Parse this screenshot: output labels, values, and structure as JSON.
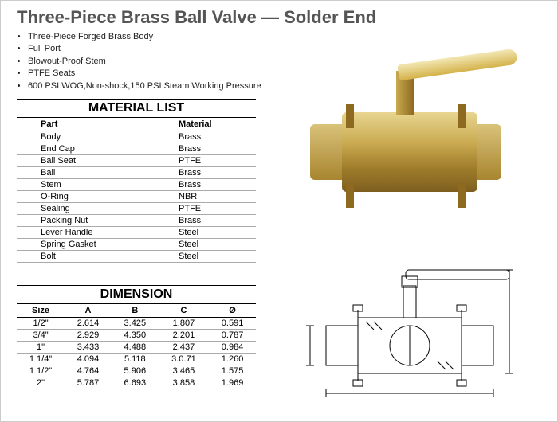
{
  "title": "Three-Piece Brass Ball Valve — Solder End",
  "features": [
    "Three-Piece Forged Brass Body",
    "Full Port",
    "Blowout-Proof Stem",
    "PTFE Seats",
    "600 PSI WOG,Non-shock,150 PSI Steam Working Pressure"
  ],
  "material_list": {
    "title": "MATERIAL LIST",
    "headers": [
      "Part",
      "Material"
    ],
    "rows": [
      [
        "Body",
        "Brass"
      ],
      [
        "End   Cap",
        "Brass"
      ],
      [
        "Ball   Seat",
        "PTFE"
      ],
      [
        "Ball",
        "Brass"
      ],
      [
        "Stem",
        "Brass"
      ],
      [
        "O-Ring",
        "NBR"
      ],
      [
        "Sealing",
        "PTFE"
      ],
      [
        "Packing  Nut",
        "Brass"
      ],
      [
        "Lever  Handle",
        "Steel"
      ],
      [
        "Spring  Gasket",
        "Steel"
      ],
      [
        "Bolt",
        "Steel"
      ]
    ]
  },
  "dimension": {
    "title": "DIMENSION",
    "headers": [
      "Size",
      "A",
      "B",
      "C",
      "Ø"
    ],
    "rows": [
      [
        "1/2\"",
        "2.614",
        "3.425",
        "1.807",
        "0.591"
      ],
      [
        "3/4\"",
        "2.929",
        "4.350",
        "2.201",
        "0.787"
      ],
      [
        "1\"",
        "3.433",
        "4.488",
        "2.437",
        "0.984"
      ],
      [
        "1  1/4\"",
        "4.094",
        "5.118",
        "3.0.71",
        "1.260"
      ],
      [
        "1  1/2\"",
        "4.764",
        "5.906",
        "3.465",
        "1.575"
      ],
      [
        "2\"",
        "5.787",
        "6.693",
        "3.858",
        "1.969"
      ]
    ]
  },
  "colors": {
    "title_text": "#555555",
    "brass_light": "#e8d590",
    "brass_mid": "#c9a94f",
    "brass_dark": "#a07d2b",
    "line": "#000000"
  }
}
